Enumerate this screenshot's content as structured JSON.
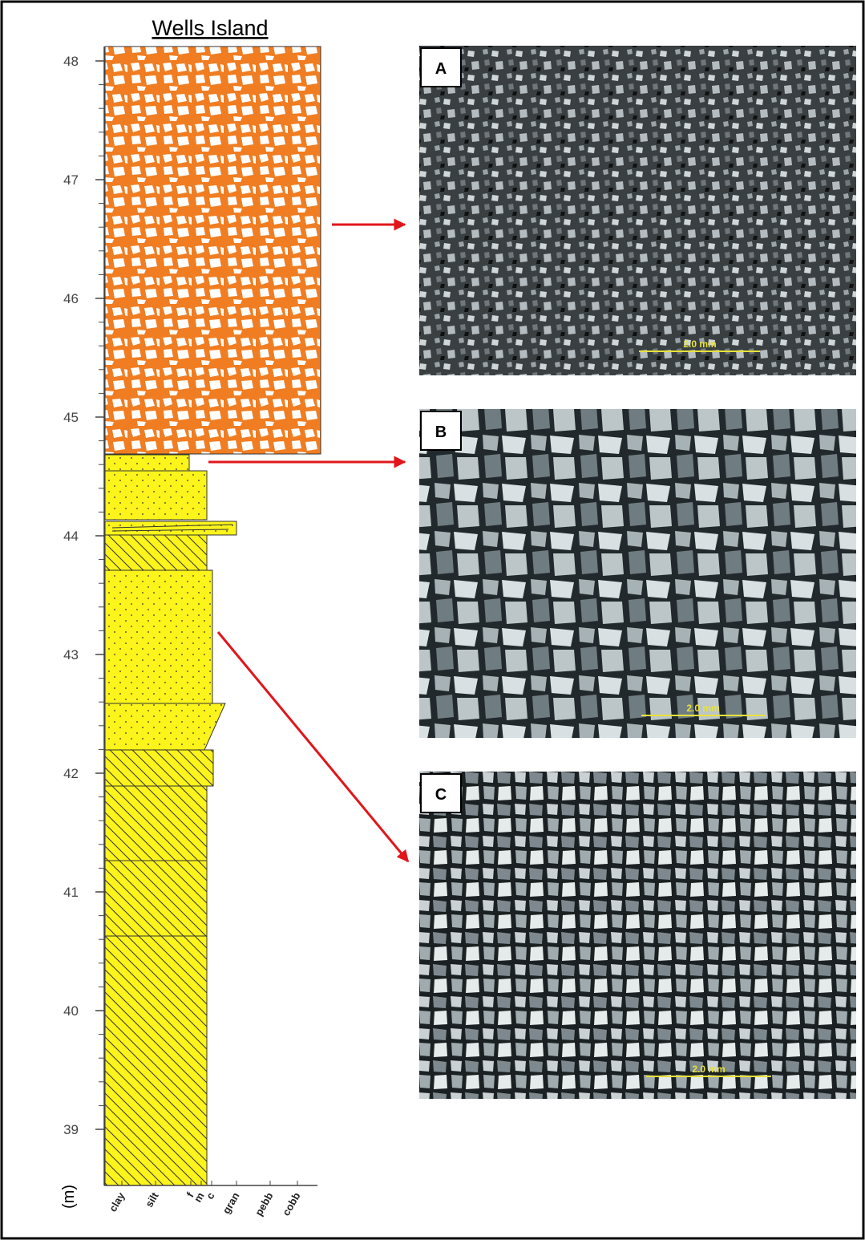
{
  "column": {
    "title": "Wells Island",
    "unit": "(m)",
    "depth_ticks": [
      "39",
      "40",
      "41",
      "42",
      "43",
      "44",
      "45",
      "46",
      "47",
      "48"
    ],
    "grain_sizes": [
      "clay",
      "silt",
      "f",
      "m",
      "c",
      "gran",
      "pebb",
      "cobb"
    ]
  },
  "photos": [
    {
      "label": "A",
      "scale": "2.0 mm"
    },
    {
      "label": "B",
      "scale": "2.0 mm"
    },
    {
      "label": "C",
      "scale": "2.0 mm"
    }
  ]
}
